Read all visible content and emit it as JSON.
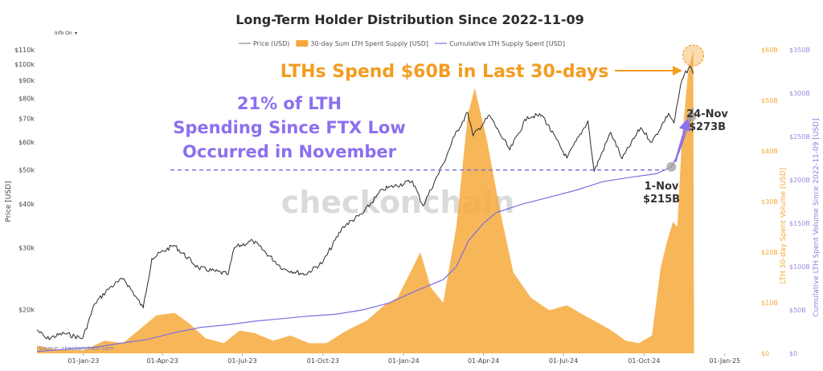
{
  "chart_data": {
    "type": "line",
    "title": "Long-Term Holder Distribution Since 2022-11-09",
    "info_toggle": "Info On",
    "source": "Source: checkonchain.com",
    "watermark": "checkonchain",
    "legend": [
      {
        "name": "Price (USD)",
        "color": "#8a8a8a",
        "kind": "line"
      },
      {
        "name": "30-day Sum LTH Spent Supply [USD]",
        "color": "#f6a93b",
        "kind": "area"
      },
      {
        "name": "Cumulative LTH Supply Spent [USD]",
        "color": "#7e6fdd",
        "kind": "line"
      }
    ],
    "x_axis": {
      "ticks": [
        "01-Jan-23",
        "01-Apr-23",
        "01-Jul-23",
        "01-Oct-23",
        "01-Jan-24",
        "01-Apr-24",
        "01-Jul-24",
        "01-Oct-24",
        "01-Jan-25"
      ],
      "range": [
        "2022-11-09",
        "2025-02-05"
      ]
    },
    "y_left": {
      "label": "Price [USD]",
      "scale": "log",
      "range": [
        15000,
        110000
      ],
      "ticks": [
        {
          "v": 20000,
          "label": "$20k"
        },
        {
          "v": 30000,
          "label": "$30k"
        },
        {
          "v": 40000,
          "label": "$40k"
        },
        {
          "v": 50000,
          "label": "$50k"
        },
        {
          "v": 60000,
          "label": "$60k"
        },
        {
          "v": 70000,
          "label": "$70k"
        },
        {
          "v": 80000,
          "label": "$80k"
        },
        {
          "v": 90000,
          "label": "$90k"
        },
        {
          "v": 100000,
          "label": "$100k"
        },
        {
          "v": 110000,
          "label": "$110k"
        }
      ]
    },
    "y_right1": {
      "label": "LTH 30-day Spent Volume [USD]",
      "range": [
        0,
        60
      ],
      "ticks": [
        {
          "v": 0,
          "label": "$0"
        },
        {
          "v": 10,
          "label": "$10B"
        },
        {
          "v": 20,
          "label": "$20B"
        },
        {
          "v": 30,
          "label": "$30B"
        },
        {
          "v": 40,
          "label": "$40B"
        },
        {
          "v": 50,
          "label": "$50B"
        },
        {
          "v": 60,
          "label": "$60B"
        }
      ]
    },
    "y_right2": {
      "label": "Cumulative LTH Spent Volume Since 2022-11-09 [USD]",
      "range": [
        0,
        350
      ],
      "ticks": [
        {
          "v": 0,
          "label": "$0"
        },
        {
          "v": 50,
          "label": "$50B"
        },
        {
          "v": 100,
          "label": "$100B"
        },
        {
          "v": 150,
          "label": "$150B"
        },
        {
          "v": 200,
          "label": "$200B"
        },
        {
          "v": 250,
          "label": "$250B"
        },
        {
          "v": 300,
          "label": "$300B"
        },
        {
          "v": 350,
          "label": "$350B"
        }
      ]
    },
    "series": [
      {
        "name": "Price (USD)",
        "color": "#2b2b2b",
        "points": [
          [
            "2022-11-09",
            17500
          ],
          [
            "2022-11-20",
            16500
          ],
          [
            "2022-12-10",
            17100
          ],
          [
            "2022-12-31",
            16550
          ],
          [
            "2023-01-14",
            20800
          ],
          [
            "2023-01-31",
            23100
          ],
          [
            "2023-02-16",
            24500
          ],
          [
            "2023-03-10",
            20200
          ],
          [
            "2023-03-20",
            28000
          ],
          [
            "2023-04-14",
            30500
          ],
          [
            "2023-05-12",
            26300
          ],
          [
            "2023-06-15",
            25200
          ],
          [
            "2023-06-22",
            30000
          ],
          [
            "2023-07-13",
            31400
          ],
          [
            "2023-08-17",
            26100
          ],
          [
            "2023-09-11",
            25200
          ],
          [
            "2023-10-01",
            27300
          ],
          [
            "2023-10-24",
            34500
          ],
          [
            "2023-11-15",
            37500
          ],
          [
            "2023-12-08",
            44000
          ],
          [
            "2024-01-11",
            46500
          ],
          [
            "2024-01-23",
            39500
          ],
          [
            "2024-02-15",
            52000
          ],
          [
            "2024-02-28",
            62500
          ],
          [
            "2024-03-14",
            73000
          ],
          [
            "2024-03-20",
            62500
          ],
          [
            "2024-04-08",
            71500
          ],
          [
            "2024-04-19",
            63800
          ],
          [
            "2024-05-01",
            57000
          ],
          [
            "2024-05-21",
            71000
          ],
          [
            "2024-06-07",
            71500
          ],
          [
            "2024-07-05",
            54000
          ],
          [
            "2024-07-29",
            69000
          ],
          [
            "2024-08-05",
            49500
          ],
          [
            "2024-08-24",
            64000
          ],
          [
            "2024-09-06",
            53800
          ],
          [
            "2024-09-27",
            66000
          ],
          [
            "2024-10-10",
            60000
          ],
          [
            "2024-10-29",
            72500
          ],
          [
            "2024-11-04",
            68000
          ],
          [
            "2024-11-13",
            90000
          ],
          [
            "2024-11-22",
            99000
          ],
          [
            "2024-11-26",
            94000
          ]
        ]
      },
      {
        "name": "30-day Sum LTH Spent Supply [USD]",
        "color": "#f6a93b",
        "points": [
          [
            "2022-11-09",
            1.5
          ],
          [
            "2022-12-01",
            0.8
          ],
          [
            "2023-01-01",
            0.6
          ],
          [
            "2023-01-25",
            2.5
          ],
          [
            "2023-02-15",
            2.0
          ],
          [
            "2023-03-01",
            4.0
          ],
          [
            "2023-03-25",
            7.5
          ],
          [
            "2023-04-15",
            8.0
          ],
          [
            "2023-05-01",
            6.0
          ],
          [
            "2023-05-20",
            3.0
          ],
          [
            "2023-06-10",
            2.0
          ],
          [
            "2023-06-28",
            4.5
          ],
          [
            "2023-07-15",
            4.0
          ],
          [
            "2023-08-05",
            2.5
          ],
          [
            "2023-08-25",
            3.5
          ],
          [
            "2023-09-15",
            2.0
          ],
          [
            "2023-10-05",
            2.0
          ],
          [
            "2023-10-28",
            4.5
          ],
          [
            "2023-11-20",
            6.5
          ],
          [
            "2023-12-10",
            9.5
          ],
          [
            "2023-12-25",
            11.0
          ],
          [
            "2024-01-10",
            16.5
          ],
          [
            "2024-01-20",
            20.0
          ],
          [
            "2024-02-01",
            13.0
          ],
          [
            "2024-02-15",
            10.0
          ],
          [
            "2024-03-01",
            25.0
          ],
          [
            "2024-03-14",
            47.0
          ],
          [
            "2024-03-22",
            52.5
          ],
          [
            "2024-04-05",
            42.0
          ],
          [
            "2024-04-20",
            28.0
          ],
          [
            "2024-05-05",
            16.0
          ],
          [
            "2024-05-25",
            11.0
          ],
          [
            "2024-06-15",
            8.5
          ],
          [
            "2024-07-05",
            9.5
          ],
          [
            "2024-07-25",
            7.5
          ],
          [
            "2024-08-10",
            6.0
          ],
          [
            "2024-08-25",
            4.5
          ],
          [
            "2024-09-10",
            2.5
          ],
          [
            "2024-09-25",
            2.0
          ],
          [
            "2024-10-10",
            3.5
          ],
          [
            "2024-10-20",
            17.0
          ],
          [
            "2024-10-27",
            22.0
          ],
          [
            "2024-11-03",
            26.0
          ],
          [
            "2024-11-08",
            25.0
          ],
          [
            "2024-11-13",
            42.0
          ],
          [
            "2024-11-20",
            55.0
          ],
          [
            "2024-11-26",
            60.0
          ],
          [
            "2024-11-27",
            0
          ]
        ]
      },
      {
        "name": "Cumulative LTH Supply Spent [USD]",
        "color": "#7e6fdd",
        "points": [
          [
            "2022-11-09",
            2
          ],
          [
            "2022-12-15",
            5
          ],
          [
            "2023-01-15",
            7
          ],
          [
            "2023-02-15",
            12
          ],
          [
            "2023-03-15",
            16
          ],
          [
            "2023-04-15",
            24
          ],
          [
            "2023-05-15",
            30
          ],
          [
            "2023-06-15",
            33
          ],
          [
            "2023-07-15",
            37
          ],
          [
            "2023-08-15",
            40
          ],
          [
            "2023-09-15",
            43
          ],
          [
            "2023-10-15",
            45
          ],
          [
            "2023-11-15",
            50
          ],
          [
            "2023-12-15",
            58
          ],
          [
            "2024-01-15",
            72
          ],
          [
            "2024-02-15",
            85
          ],
          [
            "2024-03-01",
            100
          ],
          [
            "2024-03-15",
            130
          ],
          [
            "2024-04-01",
            150
          ],
          [
            "2024-04-15",
            162
          ],
          [
            "2024-05-15",
            172
          ],
          [
            "2024-06-15",
            180
          ],
          [
            "2024-07-15",
            188
          ],
          [
            "2024-08-15",
            198
          ],
          [
            "2024-09-15",
            203
          ],
          [
            "2024-10-15",
            207
          ],
          [
            "2024-11-01",
            215
          ],
          [
            "2024-11-10",
            232
          ],
          [
            "2024-11-18",
            255
          ],
          [
            "2024-11-24",
            273
          ],
          [
            "2024-11-26",
            283
          ]
        ]
      }
    ],
    "annotations": [
      {
        "text": "LTHs Spend $60B in Last 30-days",
        "color": "#f39c1f"
      },
      {
        "lines": [
          "21% of LTH",
          "Spending Since FTX Low",
          "Occurred in November"
        ],
        "color": "#8c6ff0"
      },
      {
        "lines": [
          "1-Nov",
          "$215B"
        ],
        "date": "2024-11-01",
        "value": 215
      },
      {
        "lines": [
          "24-Nov",
          "$273B"
        ],
        "date": "2024-11-24",
        "value": 273
      }
    ],
    "reference_level": {
      "axis": "y_left",
      "value": 50000,
      "style": "dashed",
      "color": "#7e6fdd"
    }
  }
}
